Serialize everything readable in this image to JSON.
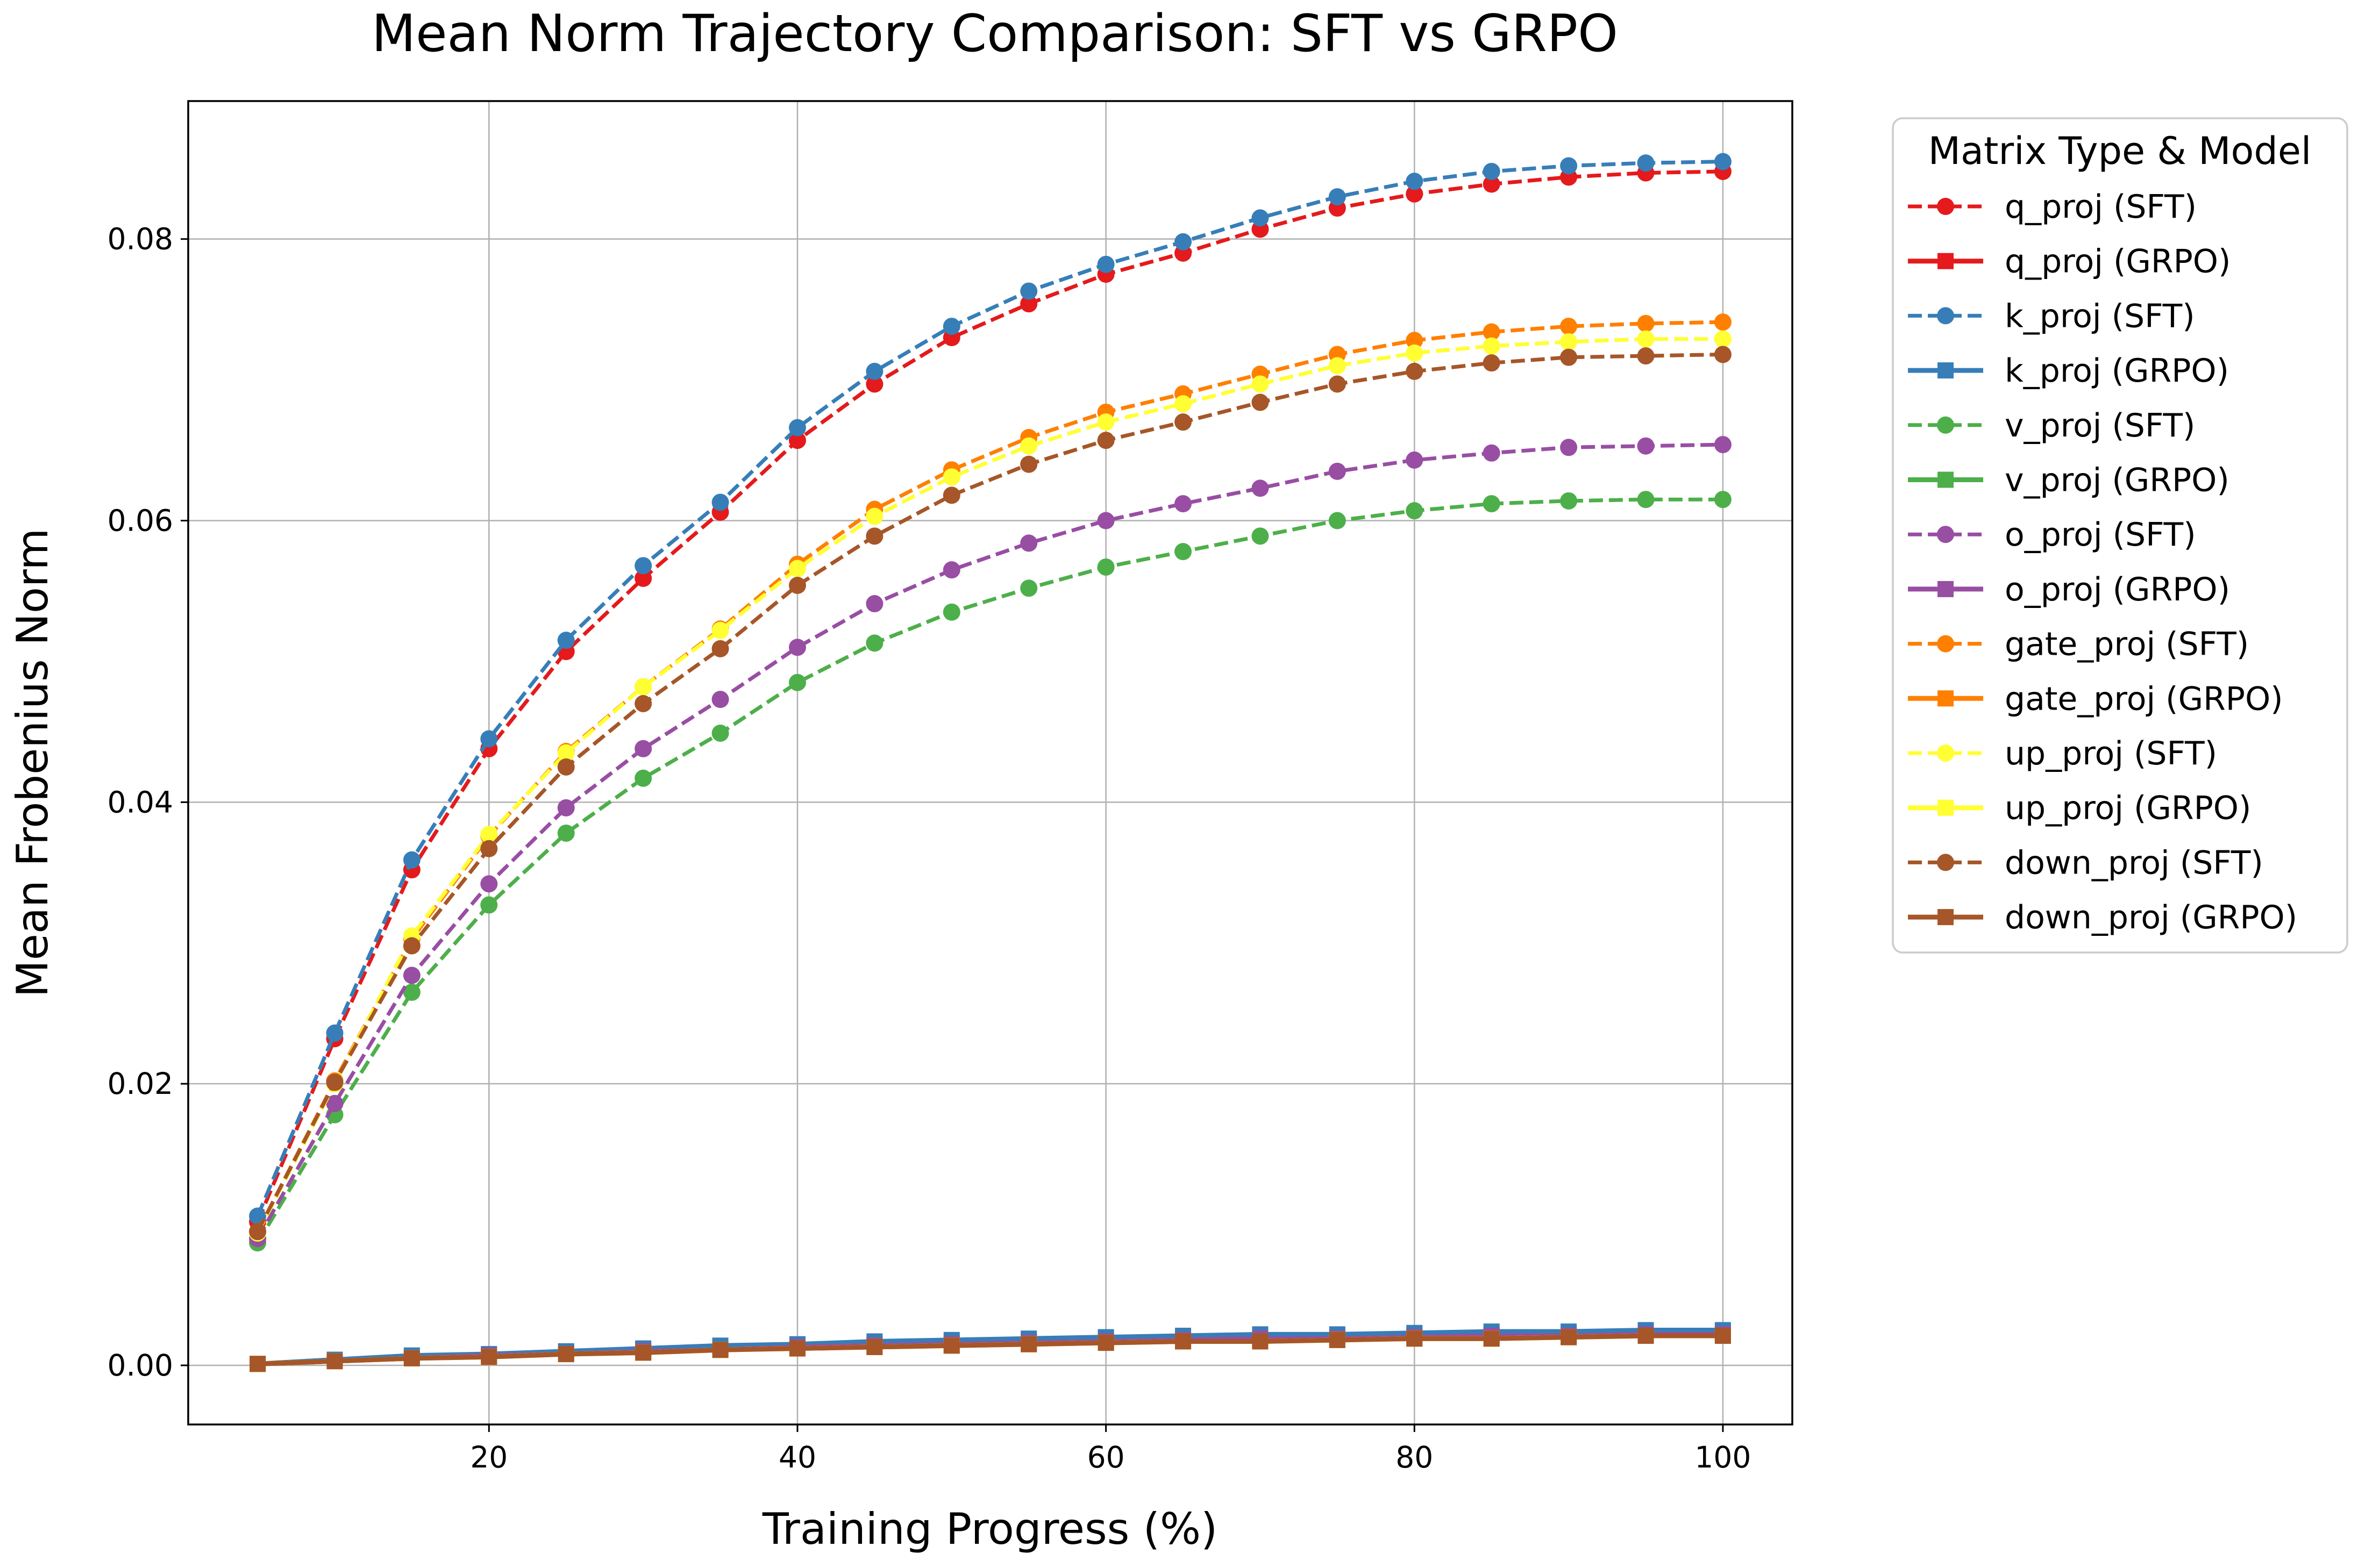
{
  "chart_data": {
    "type": "line",
    "title": "Mean Norm Trajectory Comparison: SFT vs GRPO",
    "xlabel": "Training Progress (%)",
    "ylabel": "Mean Frobenius Norm",
    "xlim": [
      0.5,
      104.5
    ],
    "ylim": [
      -0.0042,
      0.0898
    ],
    "xticks": [
      20,
      40,
      60,
      80,
      100
    ],
    "xtick_labels": [
      "20",
      "40",
      "60",
      "80",
      "100"
    ],
    "yticks": [
      0.0,
      0.02,
      0.04,
      0.06,
      0.08
    ],
    "ytick_labels": [
      "0.00",
      "0.02",
      "0.04",
      "0.06",
      "0.08"
    ],
    "grid": true,
    "legend": {
      "title": "Matrix Type & Model",
      "placement": "outside-right"
    },
    "x": [
      5,
      10,
      15,
      20,
      25,
      30,
      35,
      40,
      45,
      50,
      55,
      60,
      65,
      70,
      75,
      80,
      85,
      90,
      95,
      100
    ],
    "series": [
      {
        "name": "q_proj (SFT)",
        "color": "#e41a1c",
        "linestyle": "dashed",
        "marker": "circle",
        "values": [
          0.0102,
          0.0232,
          0.0352,
          0.0438,
          0.0507,
          0.0559,
          0.0606,
          0.0657,
          0.0697,
          0.073,
          0.0754,
          0.0775,
          0.079,
          0.0807,
          0.0822,
          0.0832,
          0.0839,
          0.0844,
          0.0847,
          0.0848
        ]
      },
      {
        "name": "q_proj (GRPO)",
        "color": "#e41a1c",
        "linestyle": "solid",
        "marker": "square",
        "values": [
          0.0001,
          0.0003,
          0.0006,
          0.0007,
          0.0009,
          0.0011,
          0.0012,
          0.0014,
          0.0015,
          0.0016,
          0.0017,
          0.0018,
          0.0019,
          0.002,
          0.002,
          0.0021,
          0.0022,
          0.0022,
          0.0023,
          0.0023
        ]
      },
      {
        "name": "k_proj (SFT)",
        "color": "#377eb8",
        "linestyle": "dashed",
        "marker": "circle",
        "values": [
          0.0106,
          0.0236,
          0.0359,
          0.0445,
          0.0515,
          0.0568,
          0.0613,
          0.0666,
          0.0706,
          0.0738,
          0.0763,
          0.0782,
          0.0798,
          0.0815,
          0.083,
          0.0841,
          0.0848,
          0.0852,
          0.0854,
          0.0855
        ]
      },
      {
        "name": "k_proj (GRPO)",
        "color": "#377eb8",
        "linestyle": "solid",
        "marker": "square",
        "values": [
          0.0001,
          0.0004,
          0.0007,
          0.0008,
          0.001,
          0.0012,
          0.0014,
          0.0015,
          0.0017,
          0.0018,
          0.0019,
          0.002,
          0.0021,
          0.0022,
          0.0022,
          0.0023,
          0.0024,
          0.0024,
          0.0025,
          0.0025
        ]
      },
      {
        "name": "v_proj (SFT)",
        "color": "#4daf4a",
        "linestyle": "dashed",
        "marker": "circle",
        "values": [
          0.0087,
          0.0178,
          0.0265,
          0.0327,
          0.0378,
          0.0417,
          0.0449,
          0.0485,
          0.0513,
          0.0535,
          0.0552,
          0.0567,
          0.0578,
          0.0589,
          0.06,
          0.0607,
          0.0612,
          0.0614,
          0.0615,
          0.0615
        ]
      },
      {
        "name": "v_proj (GRPO)",
        "color": "#4daf4a",
        "linestyle": "solid",
        "marker": "square",
        "values": [
          0.0001,
          0.0003,
          0.0005,
          0.0007,
          0.0008,
          0.001,
          0.0011,
          0.0013,
          0.0014,
          0.0015,
          0.0016,
          0.0017,
          0.0018,
          0.0018,
          0.0019,
          0.002,
          0.002,
          0.0021,
          0.0021,
          0.0022
        ]
      },
      {
        "name": "o_proj (SFT)",
        "color": "#984ea3",
        "linestyle": "dashed",
        "marker": "circle",
        "values": [
          0.009,
          0.0186,
          0.0277,
          0.0342,
          0.0396,
          0.0438,
          0.0473,
          0.051,
          0.0541,
          0.0565,
          0.0584,
          0.06,
          0.0612,
          0.0623,
          0.0635,
          0.0643,
          0.0648,
          0.0652,
          0.0653,
          0.0654
        ]
      },
      {
        "name": "o_proj (GRPO)",
        "color": "#984ea3",
        "linestyle": "solid",
        "marker": "square",
        "values": [
          0.0001,
          0.0003,
          0.0005,
          0.0007,
          0.0008,
          0.001,
          0.0011,
          0.0013,
          0.0014,
          0.0015,
          0.0016,
          0.0017,
          0.0018,
          0.0019,
          0.0019,
          0.002,
          0.0021,
          0.0021,
          0.0022,
          0.0022
        ]
      },
      {
        "name": "gate_proj (SFT)",
        "color": "#ff7f00",
        "linestyle": "dashed",
        "marker": "circle",
        "values": [
          0.0095,
          0.0202,
          0.0303,
          0.0376,
          0.0436,
          0.0482,
          0.0523,
          0.0569,
          0.0608,
          0.0636,
          0.0659,
          0.0677,
          0.069,
          0.0704,
          0.0718,
          0.0728,
          0.0734,
          0.0738,
          0.074,
          0.0741
        ]
      },
      {
        "name": "gate_proj (GRPO)",
        "color": "#ff7f00",
        "linestyle": "solid",
        "marker": "square",
        "values": [
          0.0001,
          0.0003,
          0.0005,
          0.0006,
          0.0008,
          0.0009,
          0.0011,
          0.0012,
          0.0013,
          0.0014,
          0.0015,
          0.0016,
          0.0017,
          0.0017,
          0.0018,
          0.0019,
          0.0019,
          0.002,
          0.0021,
          0.0021
        ]
      },
      {
        "name": "up_proj (SFT)",
        "color": "#ffff33",
        "linestyle": "dashed",
        "marker": "circle",
        "values": [
          0.0094,
          0.02,
          0.0305,
          0.0377,
          0.0435,
          0.0482,
          0.0522,
          0.0566,
          0.0603,
          0.0631,
          0.0653,
          0.067,
          0.0683,
          0.0697,
          0.071,
          0.0719,
          0.0724,
          0.0727,
          0.0729,
          0.0729
        ]
      },
      {
        "name": "up_proj (GRPO)",
        "color": "#ffff33",
        "linestyle": "solid",
        "marker": "square",
        "values": [
          0.0001,
          0.0003,
          0.0005,
          0.0006,
          0.0008,
          0.0009,
          0.0011,
          0.0012,
          0.0013,
          0.0014,
          0.0015,
          0.0016,
          0.0017,
          0.0017,
          0.0018,
          0.0019,
          0.0019,
          0.002,
          0.0021,
          0.0021
        ]
      },
      {
        "name": "down_proj (SFT)",
        "color": "#a65628",
        "linestyle": "dashed",
        "marker": "circle",
        "values": [
          0.0095,
          0.0201,
          0.0298,
          0.0367,
          0.0425,
          0.047,
          0.0509,
          0.0554,
          0.0589,
          0.0618,
          0.064,
          0.0657,
          0.067,
          0.0684,
          0.0697,
          0.0706,
          0.0712,
          0.0716,
          0.0717,
          0.0718
        ]
      },
      {
        "name": "down_proj (GRPO)",
        "color": "#a65628",
        "linestyle": "solid",
        "marker": "square",
        "values": [
          0.0001,
          0.0003,
          0.0005,
          0.0006,
          0.0008,
          0.0009,
          0.0011,
          0.0012,
          0.0013,
          0.0014,
          0.0015,
          0.0016,
          0.0017,
          0.0017,
          0.0018,
          0.0019,
          0.0019,
          0.002,
          0.0021,
          0.0021
        ]
      }
    ]
  }
}
